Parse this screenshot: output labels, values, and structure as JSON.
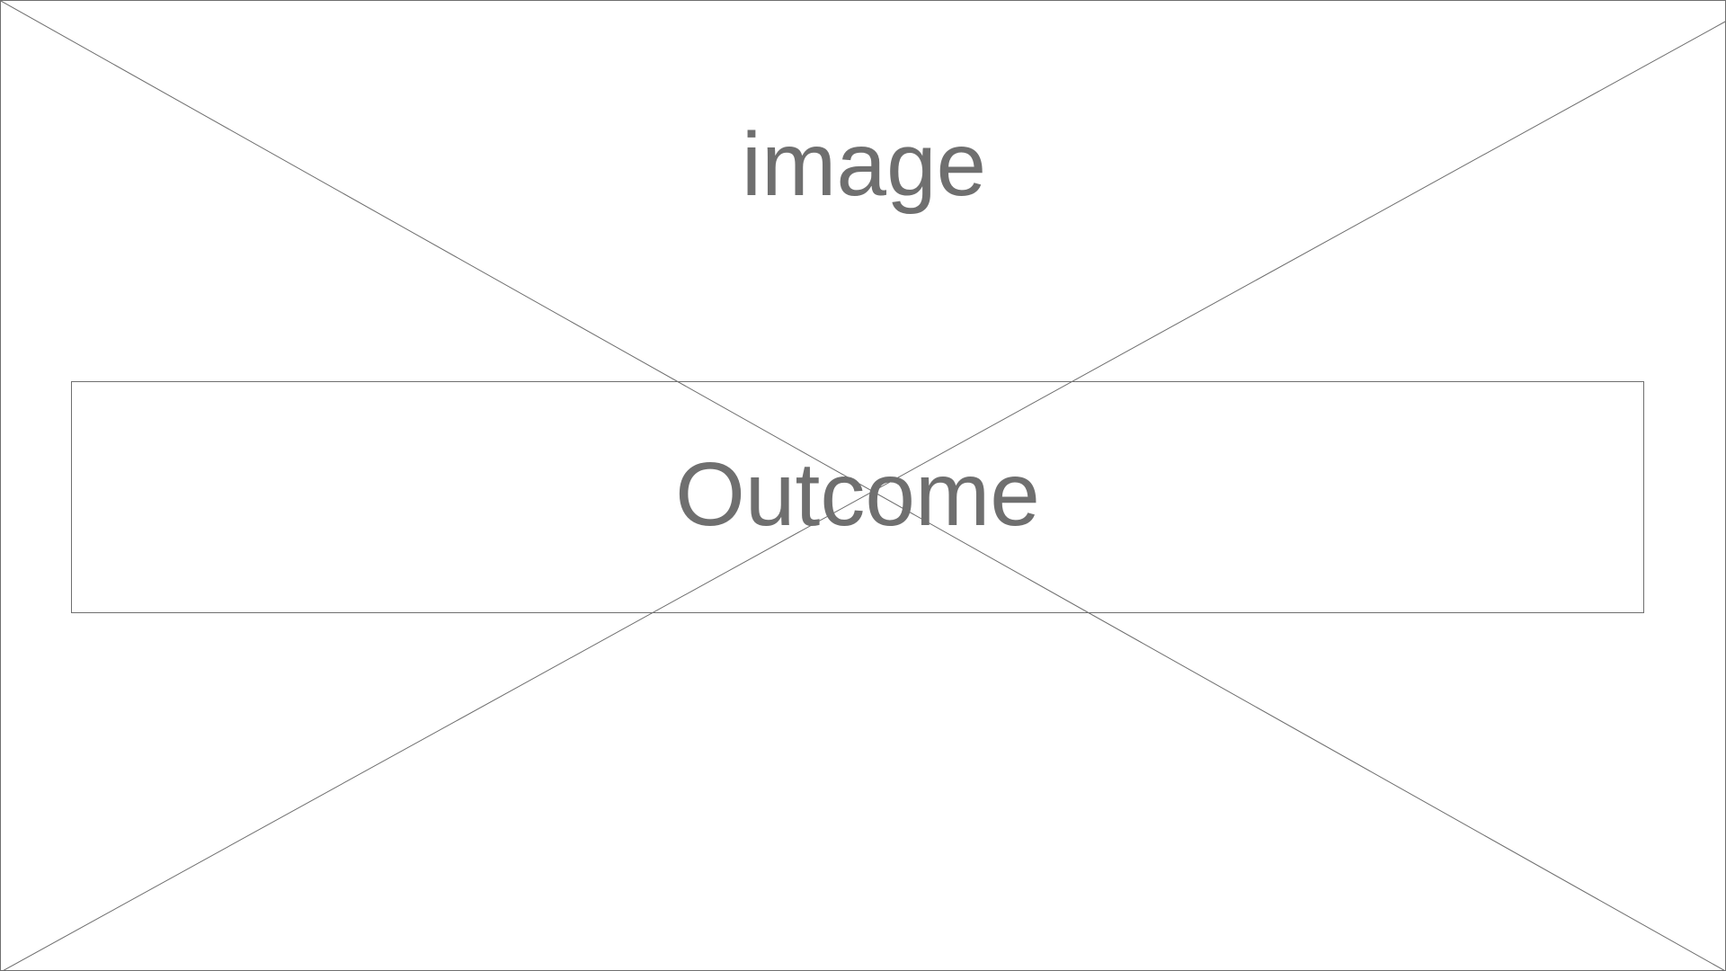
{
  "placeholder": {
    "image_label": "image",
    "outcome_label": "Outcome",
    "line_color": "#6f6f6f",
    "text_color": "#6f6f6f",
    "background_color": "#ffffff"
  }
}
